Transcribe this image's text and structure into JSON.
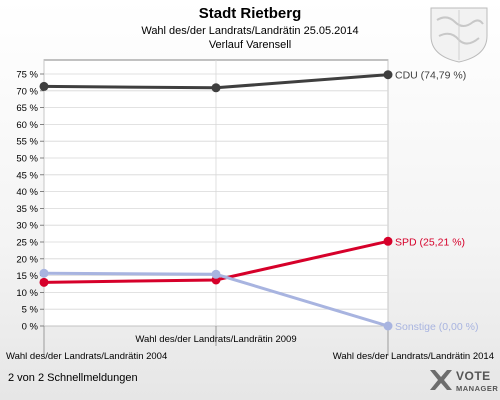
{
  "chart_data": {
    "type": "line",
    "title": "Stadt Rietberg",
    "subtitle_line1": "Wahl des/der Landrats/Landrätin 25.05.2014",
    "subtitle_line2": "Verlauf Varensell",
    "categories": [
      "Wahl des/der Landrats/Landrätin 2004",
      "Wahl des/der Landrats/Landrätin 2009",
      "Wahl des/der Landrats/Landrätin 2014"
    ],
    "ylim": [
      0,
      75
    ],
    "yticks": [
      0,
      5,
      10,
      15,
      20,
      25,
      30,
      35,
      40,
      45,
      50,
      55,
      60,
      65,
      70,
      75
    ],
    "ytick_suffix": " %",
    "series": [
      {
        "name": "CDU",
        "values": [
          71.3,
          70.9,
          74.79
        ],
        "color": "#3f3f3f",
        "label": "CDU (74,79 %)"
      },
      {
        "name": "SPD",
        "values": [
          13.0,
          13.7,
          25.21
        ],
        "color": "#d6002a",
        "label": "SPD (25,21 %)"
      },
      {
        "name": "Sonstige",
        "values": [
          15.7,
          15.4,
          0.0
        ],
        "color": "#a8b4e0",
        "label": "Sonstige (0,00 %)"
      }
    ],
    "grid": true
  },
  "footer": {
    "page_info": "2 von 2 Schnellmeldungen"
  },
  "logo": {
    "line1": "VOTE",
    "line2": "MANAGER"
  }
}
